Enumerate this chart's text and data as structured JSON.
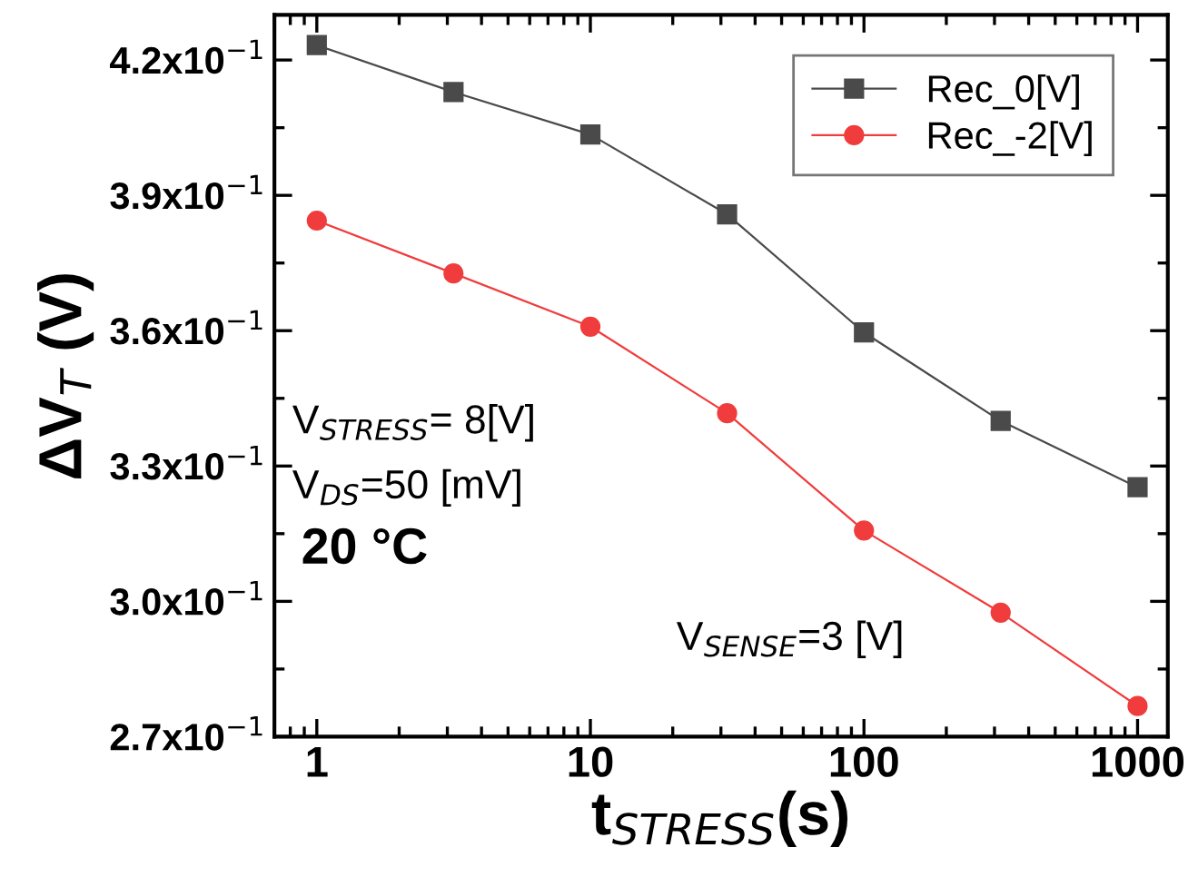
{
  "chart_data": {
    "type": "line",
    "xlabel": "t$_{STRESS}$(s)",
    "ylabel": "ΔV$_{T}$ (V)",
    "x": [
      1,
      3.16,
      10,
      31.6,
      100,
      316,
      1000
    ],
    "series": [
      {
        "name": "Rec_0[V]",
        "color": "#4a4a4a",
        "marker": "square",
        "values": [
          0.4233,
          0.4129,
          0.4035,
          0.3858,
          0.3596,
          0.34,
          0.3253
        ]
      },
      {
        "name": "Rec_-2[V]",
        "color": "#f03c3c",
        "marker": "circle",
        "values": [
          0.3844,
          0.3727,
          0.3609,
          0.3417,
          0.3157,
          0.2975,
          0.2768
        ]
      }
    ],
    "log": "x",
    "xlim": [
      0.7,
      1290
    ],
    "xticks": [
      1,
      10,
      100,
      1000
    ],
    "ylim": [
      0.27,
      0.43
    ],
    "yticks": [
      {
        "value": 0.27,
        "label": "2.7x10$^{−1}$"
      },
      {
        "value": 0.3,
        "label": "3.0x10$^{−1}$"
      },
      {
        "value": 0.33,
        "label": "3.3x10$^{−1}$"
      },
      {
        "value": 0.36,
        "label": "3.6x10$^{−1}$"
      },
      {
        "value": 0.39,
        "label": "3.9x10$^{−1}$"
      },
      {
        "value": 0.42,
        "label": "4.2x10$^{−1}$"
      }
    ],
    "annotations": [
      "V$_{STRESS}$= 8[V]",
      "V$_{DS}$=50 [mV]",
      "20 °C",
      "V$_{SENSE}$=3 [V]"
    ],
    "legend": "top right",
    "grid": false,
    "line_style": "solid"
  }
}
